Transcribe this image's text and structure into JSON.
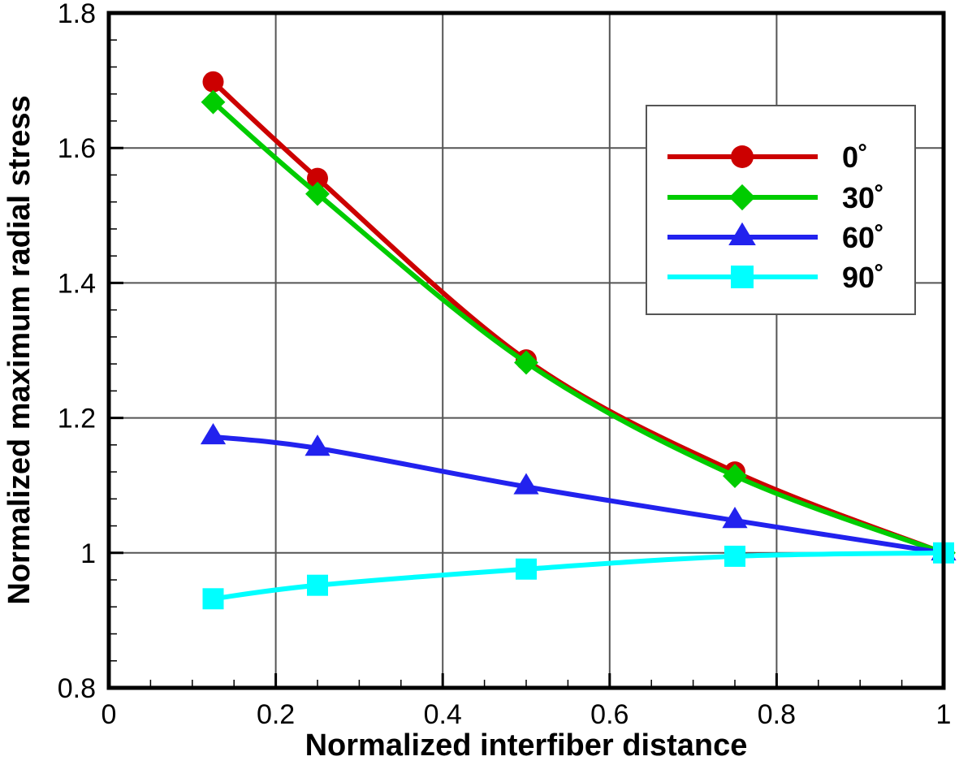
{
  "chart_data": {
    "type": "line",
    "title": "",
    "xlabel": "Normalized interfiber distance",
    "ylabel": "Normalized maximum radial stress",
    "xlim": [
      0,
      1
    ],
    "ylim": [
      0.8,
      1.8
    ],
    "grid": true,
    "legend_position": "top-right",
    "x_ticks": [
      {
        "value": 0,
        "label": "0"
      },
      {
        "value": 0.2,
        "label": "0.2"
      },
      {
        "value": 0.4,
        "label": "0.4"
      },
      {
        "value": 0.6,
        "label": "0.6"
      },
      {
        "value": 0.8,
        "label": "0.8"
      },
      {
        "value": 1,
        "label": "1"
      }
    ],
    "y_ticks": [
      {
        "value": 0.8,
        "label": "0.8"
      },
      {
        "value": 1.0,
        "label": "1"
      },
      {
        "value": 1.2,
        "label": "1.2"
      },
      {
        "value": 1.4,
        "label": "1.4"
      },
      {
        "value": 1.6,
        "label": "1.6"
      },
      {
        "value": 1.8,
        "label": "1.8"
      }
    ],
    "x_minor_step": 0.05,
    "y_minor_step": 0.04,
    "x": [
      0.125,
      0.25,
      0.5,
      0.75,
      1.0
    ],
    "series": [
      {
        "name": "0˚",
        "color": "#cc0000",
        "marker": "circle",
        "values": [
          1.698,
          1.555,
          1.286,
          1.12,
          1.0
        ]
      },
      {
        "name": "30˚",
        "color": "#00cc00",
        "marker": "diamond",
        "values": [
          1.668,
          1.532,
          1.282,
          1.114,
          1.0
        ]
      },
      {
        "name": "60˚",
        "color": "#2222ee",
        "marker": "triangle",
        "values": [
          1.172,
          1.155,
          1.098,
          1.048,
          1.0
        ]
      },
      {
        "name": "90˚",
        "color": "#00ffff",
        "marker": "square",
        "values": [
          0.932,
          0.952,
          0.976,
          0.995,
          1.0
        ]
      }
    ]
  }
}
